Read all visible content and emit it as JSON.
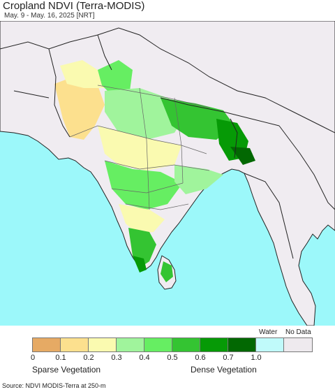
{
  "header": {
    "title": "Cropland NDVI (Terra-MODIS)",
    "subtitle": "May. 9 - May. 16, 2025 [NRT]"
  },
  "map": {
    "land_color": "#f0ecf1",
    "water_color": "#9cf8fa",
    "border_color": "#222222"
  },
  "legend": {
    "water_label": "Water",
    "nodata_label": "No Data",
    "colors": [
      "#e6aa64",
      "#fce08e",
      "#fafab0",
      "#a0f49c",
      "#66ee62",
      "#34c432",
      "#069a06",
      "#026802",
      "#c0fafa",
      "#eeeaee"
    ],
    "ticks": [
      "0",
      "0.1",
      "0.2",
      "0.3",
      "0.4",
      "0.5",
      "0.6",
      "0.7",
      "1.0"
    ],
    "sparse_label": "Sparse Vegetation",
    "dense_label": "Dense Vegetation"
  },
  "footer": {
    "source": "Source: NDVI MODIS-Terra at 250-m"
  }
}
